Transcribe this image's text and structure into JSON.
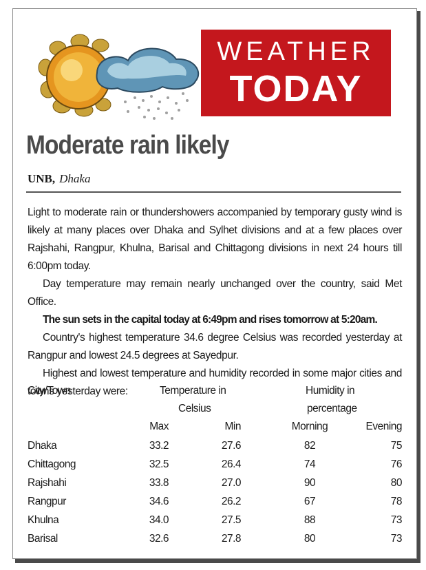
{
  "masthead": {
    "line1": "WEATHER",
    "line2": "TODAY",
    "box_color": "#c4171d",
    "art_icons": [
      "sun-icon",
      "rain-cloud-icon"
    ]
  },
  "article": {
    "headline": "Moderate rain likely",
    "source": "UNB,",
    "location": "Dhaka",
    "paragraphs": [
      "Light to moderate rain or thundershowers accompanied by temporary gusty wind is likely at many places over Dhaka and Sylhet divisions and at a few places over Rajshahi, Rangpur, Khulna, Barisal and Chittagong divisions in next 24 hours till 6:00pm today.",
      "Day temperature may remain nearly unchanged over the country, said Met Office.",
      "The sun sets in the capital today at 6:49pm and rises tomorrow at 5:20am.",
      "Country's highest temperature 34.6 degree Celsius was recorded yesterday at Rangpur and lowest 24.5 degrees at Sayedpur.",
      "Highest and lowest temperature and humidity recorded in some major cities and towns yesterday were:"
    ]
  },
  "table": {
    "header_city": "City/Town",
    "header_temp_1": "Temperature in",
    "header_temp_2": "Celsius",
    "header_hum_1": "Humidity in",
    "header_hum_2": "percentage",
    "sub_max": "Max",
    "sub_min": "Min",
    "sub_morning": "Morning",
    "sub_evening": "Evening",
    "rows": [
      {
        "city": "Dhaka",
        "max": "33.2",
        "min": "27.6",
        "morning": "82",
        "evening": "75"
      },
      {
        "city": "Chittagong",
        "max": "32.5",
        "min": "26.4",
        "morning": "74",
        "evening": "76"
      },
      {
        "city": "Rajshahi",
        "max": "33.8",
        "min": "27.0",
        "morning": "90",
        "evening": "80"
      },
      {
        "city": "Rangpur",
        "max": "34.6",
        "min": "26.2",
        "morning": "67",
        "evening": "78"
      },
      {
        "city": "Khulna",
        "max": "34.0",
        "min": "27.5",
        "morning": "88",
        "evening": "73"
      },
      {
        "city": "Barisal",
        "max": "32.6",
        "min": "27.8",
        "morning": "80",
        "evening": "73"
      }
    ]
  }
}
